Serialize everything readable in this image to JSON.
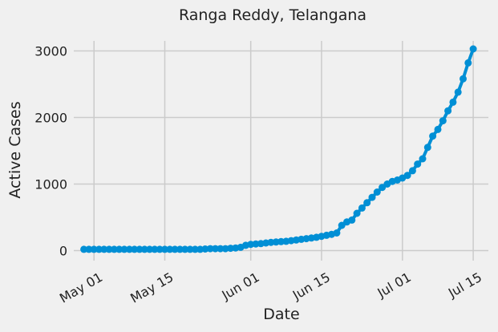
{
  "chart_data": {
    "type": "line",
    "title": "Ranga Reddy, Telangana",
    "xlabel": "Date",
    "ylabel": "Active Cases",
    "x_ticks": [
      "May 01",
      "May 15",
      "Jun 01",
      "Jun 15",
      "Jul 01",
      "Jul 15"
    ],
    "y_ticks": [
      "0",
      "1000",
      "2000",
      "3000"
    ],
    "ylim": [
      -150,
      3150
    ],
    "xlim": [
      "2020-04-27",
      "2020-07-18"
    ],
    "grid": true,
    "color": "#008fd5",
    "series": [
      {
        "x": [
          "2020-04-29",
          "2020-04-30",
          "2020-05-01",
          "2020-05-02",
          "2020-05-03",
          "2020-05-04",
          "2020-05-05",
          "2020-05-06",
          "2020-05-07",
          "2020-05-08",
          "2020-05-09",
          "2020-05-10",
          "2020-05-11",
          "2020-05-12",
          "2020-05-13",
          "2020-05-14",
          "2020-05-15",
          "2020-05-16",
          "2020-05-17",
          "2020-05-18",
          "2020-05-19",
          "2020-05-20",
          "2020-05-21",
          "2020-05-22",
          "2020-05-23",
          "2020-05-24",
          "2020-05-25",
          "2020-05-26",
          "2020-05-27",
          "2020-05-28",
          "2020-05-29",
          "2020-05-30",
          "2020-05-31",
          "2020-06-01",
          "2020-06-02",
          "2020-06-03",
          "2020-06-04",
          "2020-06-05",
          "2020-06-06",
          "2020-06-07",
          "2020-06-08",
          "2020-06-09",
          "2020-06-10",
          "2020-06-11",
          "2020-06-12",
          "2020-06-13",
          "2020-06-14",
          "2020-06-15",
          "2020-06-16",
          "2020-06-17",
          "2020-06-18",
          "2020-06-19",
          "2020-06-20",
          "2020-06-21",
          "2020-06-22",
          "2020-06-23",
          "2020-06-24",
          "2020-06-25",
          "2020-06-26",
          "2020-06-27",
          "2020-06-28",
          "2020-06-29",
          "2020-06-30",
          "2020-07-01",
          "2020-07-02",
          "2020-07-03",
          "2020-07-04",
          "2020-07-05",
          "2020-07-06",
          "2020-07-07",
          "2020-07-08",
          "2020-07-09",
          "2020-07-10",
          "2020-07-11",
          "2020-07-12",
          "2020-07-13",
          "2020-07-14",
          "2020-07-15"
        ],
        "y": [
          20,
          20,
          20,
          20,
          20,
          20,
          20,
          20,
          20,
          20,
          20,
          20,
          20,
          20,
          20,
          20,
          20,
          20,
          20,
          20,
          20,
          20,
          20,
          20,
          25,
          30,
          30,
          30,
          30,
          35,
          40,
          50,
          80,
          95,
          100,
          105,
          115,
          125,
          130,
          135,
          140,
          150,
          160,
          170,
          180,
          190,
          200,
          215,
          230,
          245,
          265,
          380,
          430,
          460,
          560,
          640,
          720,
          800,
          880,
          950,
          1000,
          1040,
          1060,
          1090,
          1130,
          1200,
          1300,
          1380,
          1550,
          1720,
          1820,
          1950,
          2100,
          2230,
          2380,
          2580,
          2820,
          3030
        ]
      }
    ]
  }
}
